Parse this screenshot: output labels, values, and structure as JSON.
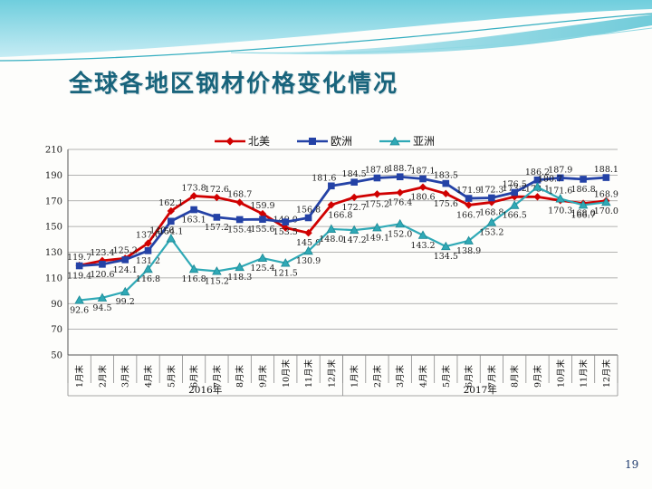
{
  "slide": {
    "title": "全球各地区钢材价格变化情况",
    "page_number": "19"
  },
  "chart_data": {
    "type": "line",
    "title": "",
    "xlabel": "",
    "ylabel": "",
    "y_axis": {
      "min": 50,
      "max": 210,
      "step": 20
    },
    "grid": true,
    "legend_position": "top",
    "categories": [
      "1月末",
      "2月末",
      "3月末",
      "4月末",
      "5月末",
      "6月末",
      "7月末",
      "8月末",
      "9月末",
      "10月末",
      "11月末",
      "12月末",
      "1月末",
      "2月末",
      "3月末",
      "4月末",
      "5月末",
      "6月末",
      "7月末",
      "8月末",
      "9月末",
      "10月末",
      "11月末",
      "12月末"
    ],
    "category_groups": [
      {
        "label": "2016年",
        "span": 12
      },
      {
        "label": "2017年",
        "span": 12
      }
    ],
    "series": [
      {
        "name": "北美",
        "color": "#d00000",
        "marker": "diamond",
        "values": [
          119.7,
          123.4,
          125.2,
          137.0,
          162.1,
          173.8,
          172.6,
          168.7,
          159.9,
          149.0,
          145.0,
          166.8,
          172.7,
          175.2,
          176.4,
          180.6,
          175.6,
          166.7,
          168.8,
          173.2,
          173.1,
          170.3,
          168.0,
          170.0
        ],
        "labels": [
          "119.7",
          "123.4",
          "125.2",
          "137.0",
          "162.1",
          "173.8",
          "172.6",
          "168.7",
          "159.9",
          "149.0",
          "145.0",
          "166.8",
          "172.7",
          "175.2",
          "176.4",
          "180.6",
          "175.6",
          "166.7",
          "168.8",
          "173.2",
          "173.1",
          "170.3",
          "168.0",
          "170.0"
        ]
      },
      {
        "name": "欧洲",
        "color": "#2442a6",
        "marker": "square",
        "values": [
          119.4,
          120.6,
          124.1,
          131.2,
          154.1,
          163.1,
          157.2,
          155.4,
          155.6,
          153.5,
          156.8,
          181.6,
          184.5,
          187.8,
          188.7,
          187.1,
          183.5,
          171.9,
          172.3,
          176.5,
          186.2,
          187.9,
          186.8,
          188.1
        ],
        "labels": [
          "119.4",
          "120.6",
          "124.1",
          "131.2",
          "154.1",
          "163.1",
          "157.2",
          "155.4",
          "155.6",
          "153.5",
          "156.8",
          "181.6",
          "184.5",
          "187.8",
          "188.7",
          "187.1",
          "183.5",
          "171.9",
          "172.3",
          "176.5",
          "186.2",
          "187.9",
          "186.8",
          "188.1"
        ]
      },
      {
        "name": "亚洲",
        "color": "#2fa9b6",
        "marker": "triangle",
        "values": [
          92.6,
          94.5,
          99.2,
          116.8,
          140.6,
          116.8,
          115.2,
          118.3,
          125.4,
          121.5,
          130.9,
          148.0,
          147.2,
          149.1,
          152.0,
          143.2,
          134.5,
          138.9,
          153.2,
          166.5,
          180.7,
          171.6,
          166.7,
          168.9
        ],
        "labels": [
          "92.6",
          "94.5",
          "99.2",
          "116.8",
          "140.6",
          "116.8",
          "115.2",
          "118.3",
          "125.4",
          "121.5",
          "130.9",
          "148.0",
          "147.2",
          "149.1",
          "152.0",
          "143.2",
          "134.5",
          "138.9",
          "153.2",
          "166.5",
          "180.7",
          "171.6",
          "166.7",
          "168.9"
        ]
      }
    ]
  }
}
